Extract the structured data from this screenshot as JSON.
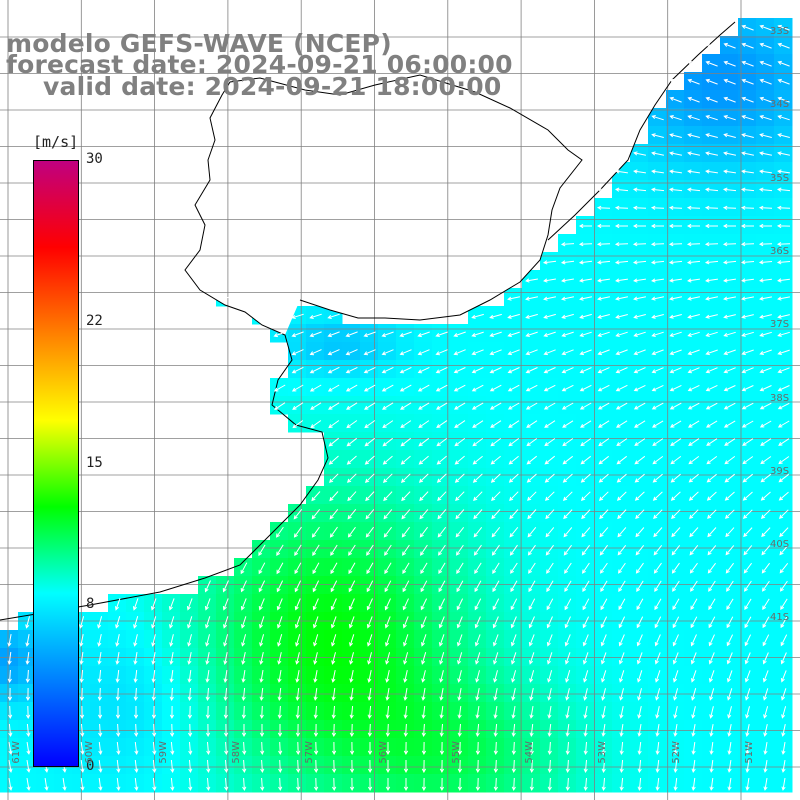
{
  "title": {
    "line1": "modelo GEFS-WAVE (NCEP)",
    "line2": "forecast date: 2024-09-21 06:00:00",
    "line3": "valid date: 2024-09-21 18:00:00"
  },
  "colorbar": {
    "unit": "[m/s]",
    "ticks": [
      "30",
      "22",
      "15",
      "8",
      "0"
    ],
    "tick_values": [
      30,
      22,
      15,
      8,
      0
    ],
    "min": 0,
    "max": 30,
    "colors": [
      "#0000ff",
      "#0080ff",
      "#00ffff",
      "#00ff00",
      "#ffff00",
      "#ff8000",
      "#ff0000",
      "#c00080"
    ]
  },
  "lat_labels": [
    "33S",
    "34S",
    "35S",
    "36S",
    "37S",
    "38S",
    "39S",
    "40S",
    "41S"
  ],
  "lon_labels": [
    "61W",
    "60W",
    "59W",
    "58W",
    "57W",
    "56W",
    "55W",
    "54W",
    "53W",
    "52W",
    "51W"
  ],
  "colors": {
    "land": "#ffffff",
    "coast": "#000000",
    "grid": "#808080",
    "arrows": "#ffffff"
  }
}
